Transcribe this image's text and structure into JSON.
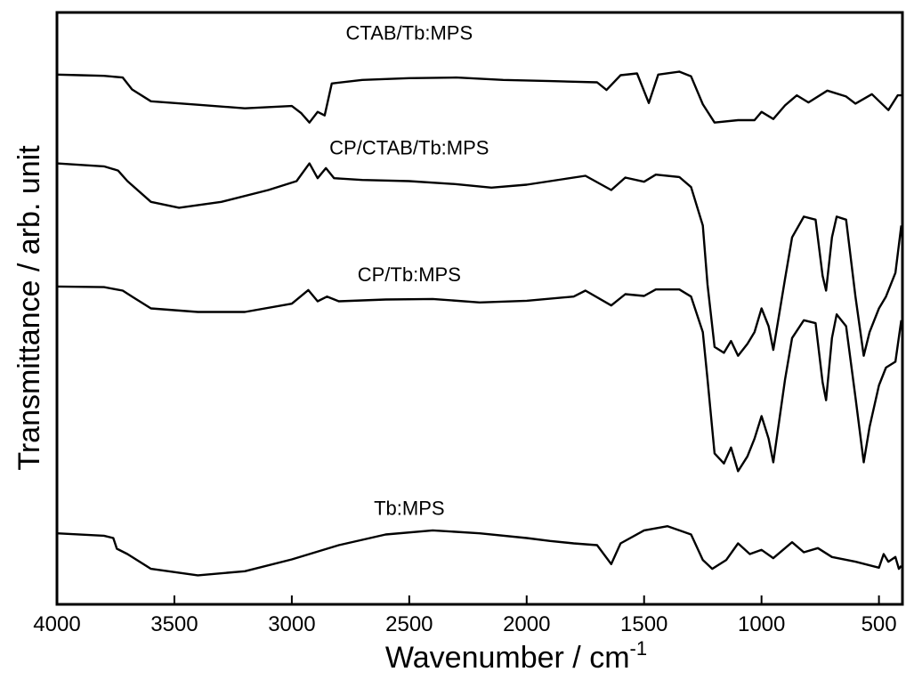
{
  "chart_data": {
    "type": "line",
    "title": "",
    "xlabel": "Wavenumber / cm",
    "xlabel_superscript": "-1",
    "ylabel": "Transmittance / arb. unit",
    "xlim": [
      4000,
      400
    ],
    "x_reversed": true,
    "y_ticks_shown": false,
    "grid": false,
    "legend": "none",
    "x_ticks": [
      4000,
      3500,
      3000,
      2500,
      2000,
      1500,
      1000,
      500
    ],
    "x_tick_labels": [
      "4000",
      "3500",
      "3000",
      "2500",
      "2000",
      "1500",
      "1000",
      "500"
    ],
    "series": [
      {
        "name": "CTAB/Tb:MPS",
        "points": [
          [
            4000,
            0.895
          ],
          [
            3900,
            0.894
          ],
          [
            3800,
            0.893
          ],
          [
            3720,
            0.89
          ],
          [
            3680,
            0.87
          ],
          [
            3600,
            0.85
          ],
          [
            3400,
            0.844
          ],
          [
            3200,
            0.838
          ],
          [
            3000,
            0.842
          ],
          [
            2960,
            0.83
          ],
          [
            2925,
            0.814
          ],
          [
            2890,
            0.832
          ],
          [
            2860,
            0.826
          ],
          [
            2830,
            0.88
          ],
          [
            2700,
            0.886
          ],
          [
            2500,
            0.889
          ],
          [
            2300,
            0.89
          ],
          [
            2100,
            0.886
          ],
          [
            1900,
            0.884
          ],
          [
            1700,
            0.882
          ],
          [
            1660,
            0.869
          ],
          [
            1600,
            0.894
          ],
          [
            1530,
            0.897
          ],
          [
            1480,
            0.847
          ],
          [
            1440,
            0.895
          ],
          [
            1350,
            0.9
          ],
          [
            1300,
            0.892
          ],
          [
            1250,
            0.845
          ],
          [
            1200,
            0.814
          ],
          [
            1100,
            0.818
          ],
          [
            1030,
            0.818
          ],
          [
            1000,
            0.832
          ],
          [
            950,
            0.82
          ],
          [
            900,
            0.843
          ],
          [
            850,
            0.86
          ],
          [
            800,
            0.848
          ],
          [
            720,
            0.868
          ],
          [
            640,
            0.858
          ],
          [
            600,
            0.846
          ],
          [
            530,
            0.862
          ],
          [
            460,
            0.835
          ],
          [
            420,
            0.86
          ],
          [
            405,
            0.86
          ]
        ]
      },
      {
        "name": "CP/CTAB/Tb:MPS",
        "points": [
          [
            4000,
            0.745
          ],
          [
            3800,
            0.74
          ],
          [
            3740,
            0.733
          ],
          [
            3700,
            0.715
          ],
          [
            3600,
            0.68
          ],
          [
            3480,
            0.67
          ],
          [
            3300,
            0.68
          ],
          [
            3100,
            0.7
          ],
          [
            2980,
            0.715
          ],
          [
            2925,
            0.745
          ],
          [
            2890,
            0.72
          ],
          [
            2855,
            0.737
          ],
          [
            2820,
            0.72
          ],
          [
            2700,
            0.717
          ],
          [
            2500,
            0.715
          ],
          [
            2300,
            0.71
          ],
          [
            2150,
            0.704
          ],
          [
            2000,
            0.709
          ],
          [
            1850,
            0.718
          ],
          [
            1750,
            0.724
          ],
          [
            1640,
            0.7
          ],
          [
            1580,
            0.721
          ],
          [
            1500,
            0.714
          ],
          [
            1450,
            0.726
          ],
          [
            1350,
            0.722
          ],
          [
            1300,
            0.705
          ],
          [
            1250,
            0.64
          ],
          [
            1230,
            0.54
          ],
          [
            1200,
            0.435
          ],
          [
            1160,
            0.425
          ],
          [
            1130,
            0.445
          ],
          [
            1100,
            0.42
          ],
          [
            1060,
            0.44
          ],
          [
            1030,
            0.46
          ],
          [
            1000,
            0.5
          ],
          [
            970,
            0.47
          ],
          [
            950,
            0.43
          ],
          [
            900,
            0.55
          ],
          [
            870,
            0.62
          ],
          [
            820,
            0.655
          ],
          [
            770,
            0.65
          ],
          [
            740,
            0.555
          ],
          [
            725,
            0.53
          ],
          [
            700,
            0.62
          ],
          [
            680,
            0.655
          ],
          [
            640,
            0.65
          ],
          [
            600,
            0.52
          ],
          [
            565,
            0.42
          ],
          [
            540,
            0.46
          ],
          [
            500,
            0.5
          ],
          [
            470,
            0.52
          ],
          [
            430,
            0.56
          ],
          [
            405,
            0.64
          ]
        ]
      },
      {
        "name": "CP/Tb:MPS",
        "points": [
          [
            4000,
            0.537
          ],
          [
            3800,
            0.536
          ],
          [
            3720,
            0.53
          ],
          [
            3680,
            0.52
          ],
          [
            3600,
            0.5
          ],
          [
            3400,
            0.494
          ],
          [
            3200,
            0.494
          ],
          [
            3000,
            0.508
          ],
          [
            2930,
            0.531
          ],
          [
            2890,
            0.512
          ],
          [
            2850,
            0.52
          ],
          [
            2800,
            0.512
          ],
          [
            2600,
            0.515
          ],
          [
            2400,
            0.516
          ],
          [
            2200,
            0.51
          ],
          [
            2000,
            0.513
          ],
          [
            1800,
            0.52
          ],
          [
            1750,
            0.53
          ],
          [
            1640,
            0.505
          ],
          [
            1580,
            0.524
          ],
          [
            1500,
            0.521
          ],
          [
            1450,
            0.532
          ],
          [
            1350,
            0.532
          ],
          [
            1300,
            0.52
          ],
          [
            1250,
            0.46
          ],
          [
            1230,
            0.38
          ],
          [
            1200,
            0.255
          ],
          [
            1160,
            0.238
          ],
          [
            1130,
            0.265
          ],
          [
            1100,
            0.225
          ],
          [
            1060,
            0.25
          ],
          [
            1030,
            0.28
          ],
          [
            1000,
            0.318
          ],
          [
            970,
            0.28
          ],
          [
            950,
            0.24
          ],
          [
            900,
            0.38
          ],
          [
            870,
            0.45
          ],
          [
            820,
            0.48
          ],
          [
            770,
            0.475
          ],
          [
            740,
            0.375
          ],
          [
            725,
            0.345
          ],
          [
            700,
            0.45
          ],
          [
            680,
            0.49
          ],
          [
            640,
            0.47
          ],
          [
            600,
            0.35
          ],
          [
            565,
            0.24
          ],
          [
            540,
            0.3
          ],
          [
            500,
            0.37
          ],
          [
            470,
            0.4
          ],
          [
            430,
            0.41
          ],
          [
            405,
            0.48
          ]
        ]
      },
      {
        "name": "Tb:MPS",
        "points": [
          [
            4000,
            0.12
          ],
          [
            3800,
            0.116
          ],
          [
            3760,
            0.112
          ],
          [
            3745,
            0.094
          ],
          [
            3700,
            0.085
          ],
          [
            3600,
            0.06
          ],
          [
            3400,
            0.049
          ],
          [
            3200,
            0.056
          ],
          [
            3000,
            0.076
          ],
          [
            2800,
            0.1
          ],
          [
            2600,
            0.118
          ],
          [
            2400,
            0.125
          ],
          [
            2200,
            0.12
          ],
          [
            2000,
            0.112
          ],
          [
            1900,
            0.107
          ],
          [
            1800,
            0.103
          ],
          [
            1700,
            0.1
          ],
          [
            1640,
            0.068
          ],
          [
            1600,
            0.103
          ],
          [
            1500,
            0.125
          ],
          [
            1400,
            0.132
          ],
          [
            1300,
            0.118
          ],
          [
            1250,
            0.075
          ],
          [
            1210,
            0.06
          ],
          [
            1150,
            0.075
          ],
          [
            1100,
            0.103
          ],
          [
            1050,
            0.085
          ],
          [
            1000,
            0.092
          ],
          [
            950,
            0.078
          ],
          [
            870,
            0.105
          ],
          [
            820,
            0.088
          ],
          [
            760,
            0.095
          ],
          [
            700,
            0.08
          ],
          [
            600,
            0.072
          ],
          [
            500,
            0.062
          ],
          [
            480,
            0.085
          ],
          [
            460,
            0.072
          ],
          [
            430,
            0.08
          ],
          [
            415,
            0.06
          ],
          [
            405,
            0.065
          ]
        ]
      }
    ],
    "series_labels": [
      {
        "text": "CTAB/Tb:MPS",
        "x": 2500,
        "y_series": 0,
        "dy": 0.065
      },
      {
        "text": "CP/CTAB/Tb:MPS",
        "x": 2500,
        "y_series": 1,
        "dy": 0.045
      },
      {
        "text": "CP/Tb:MPS",
        "x": 2500,
        "y_series": 2,
        "dy": 0.03
      },
      {
        "text": "Tb:MPS",
        "x": 2500,
        "y_series": 3,
        "dy": 0.03
      }
    ]
  }
}
